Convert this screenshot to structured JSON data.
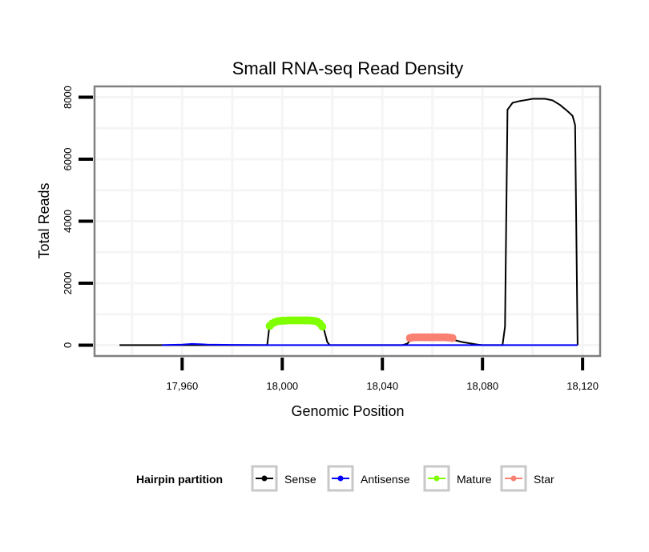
{
  "chart_data": {
    "type": "line",
    "title": "Small RNA-seq Read Density",
    "xlabel": "Genomic Position",
    "ylabel": "Total Reads",
    "xlim": [
      17925,
      18127
    ],
    "ylim": [
      -350,
      8350
    ],
    "x_ticks": [
      17960,
      18000,
      18040,
      18080,
      18120
    ],
    "x_tick_labels": [
      "17,960",
      "18,000",
      "18,040",
      "18,080",
      "18,120"
    ],
    "y_ticks": [
      0,
      2000,
      4000,
      6000,
      8000
    ],
    "y_tick_labels": [
      "0",
      "2000",
      "4000",
      "6000",
      "8000"
    ],
    "grid": true,
    "legend": {
      "title": "Hairpin partition",
      "position": "bottom",
      "entries": [
        {
          "name": "Sense",
          "color": "#000000"
        },
        {
          "name": "Antisense",
          "color": "#0000ff"
        },
        {
          "name": "Mature",
          "color": "#7fff00"
        },
        {
          "name": "Star",
          "color": "#fa8072"
        }
      ]
    },
    "series": [
      {
        "name": "Sense",
        "color": "#000000",
        "style": "line",
        "points": [
          [
            17935,
            0
          ],
          [
            17981,
            0
          ],
          [
            17982,
            0
          ],
          [
            17994,
            0
          ],
          [
            17995,
            700
          ],
          [
            17997,
            780
          ],
          [
            18000,
            800
          ],
          [
            18005,
            810
          ],
          [
            18010,
            810
          ],
          [
            18014,
            790
          ],
          [
            18016,
            700
          ],
          [
            18018,
            100
          ],
          [
            18019,
            0
          ],
          [
            18048,
            0
          ],
          [
            18050,
            50
          ],
          [
            18052,
            250
          ],
          [
            18066,
            250
          ],
          [
            18068,
            180
          ],
          [
            18072,
            100
          ],
          [
            18078,
            20
          ],
          [
            18080,
            0
          ],
          [
            18088,
            0
          ],
          [
            18089,
            600
          ],
          [
            18090,
            7600
          ],
          [
            18092,
            7820
          ],
          [
            18095,
            7880
          ],
          [
            18098,
            7920
          ],
          [
            18100,
            7950
          ],
          [
            18105,
            7950
          ],
          [
            18108,
            7900
          ],
          [
            18111,
            7750
          ],
          [
            18114,
            7550
          ],
          [
            18116,
            7400
          ],
          [
            18117,
            7100
          ],
          [
            18118,
            0
          ]
        ]
      },
      {
        "name": "Antisense",
        "color": "#0000ff",
        "style": "line",
        "points": [
          [
            17952,
            0
          ],
          [
            17960,
            20
          ],
          [
            17964,
            40
          ],
          [
            17970,
            20
          ],
          [
            17980,
            10
          ],
          [
            17995,
            0
          ],
          [
            18018,
            0
          ],
          [
            18048,
            0
          ],
          [
            18078,
            0
          ],
          [
            18090,
            0
          ],
          [
            18118,
            0
          ]
        ]
      },
      {
        "name": "Mature",
        "color": "#7fff00",
        "style": "points",
        "points": [
          [
            17995,
            620
          ],
          [
            17996,
            700
          ],
          [
            17997,
            740
          ],
          [
            17998,
            770
          ],
          [
            17999,
            780
          ],
          [
            18000,
            790
          ],
          [
            18001,
            790
          ],
          [
            18002,
            795
          ],
          [
            18003,
            800
          ],
          [
            18004,
            800
          ],
          [
            18005,
            800
          ],
          [
            18006,
            800
          ],
          [
            18007,
            800
          ],
          [
            18008,
            800
          ],
          [
            18009,
            800
          ],
          [
            18010,
            800
          ],
          [
            18011,
            795
          ],
          [
            18012,
            790
          ],
          [
            18013,
            780
          ],
          [
            18014,
            760
          ],
          [
            18015,
            700
          ],
          [
            18016,
            600
          ]
        ]
      },
      {
        "name": "Star",
        "color": "#fa8072",
        "style": "points",
        "points": [
          [
            18051,
            230
          ],
          [
            18052,
            250
          ],
          [
            18053,
            255
          ],
          [
            18054,
            255
          ],
          [
            18055,
            255
          ],
          [
            18056,
            255
          ],
          [
            18057,
            255
          ],
          [
            18058,
            255
          ],
          [
            18059,
            255
          ],
          [
            18060,
            255
          ],
          [
            18061,
            255
          ],
          [
            18062,
            255
          ],
          [
            18063,
            255
          ],
          [
            18064,
            255
          ],
          [
            18065,
            255
          ],
          [
            18066,
            250
          ],
          [
            18067,
            240
          ],
          [
            18068,
            230
          ]
        ]
      }
    ]
  }
}
